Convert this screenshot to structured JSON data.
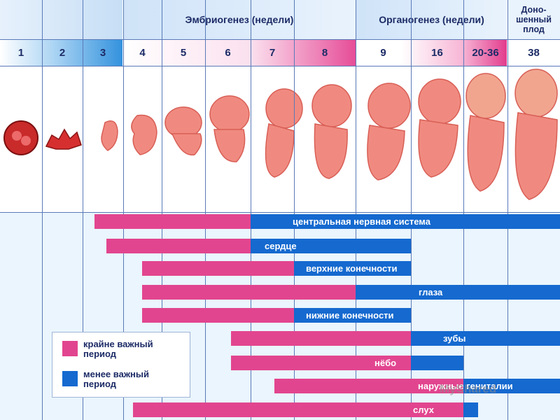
{
  "header": {
    "embryogenesis": "Эмбриогенез (недели)",
    "organogenesis": "Органогенез (недели)",
    "fullterm_line1": "Доно-",
    "fullterm_line2": "шенный",
    "fullterm_line3": "плод"
  },
  "weeks": [
    "1",
    "2",
    "3",
    "4",
    "5",
    "6",
    "7",
    "8",
    "9",
    "16",
    "20-36",
    "38"
  ],
  "legend": {
    "critical_line1": "крайне важный",
    "critical_line2": "период",
    "less_line1": "менее важный",
    "less_line2": "период"
  },
  "colors": {
    "critical": "#e2458f",
    "less_important": "#1569cf",
    "header_text": "#1c2b66",
    "fetus": "#f08a80"
  },
  "watermark": "MyShared",
  "chart_data": {
    "type": "gantt",
    "categories": [
      "1",
      "2",
      "3",
      "4",
      "5",
      "6",
      "7",
      "8",
      "9",
      "16",
      "20-36",
      "38"
    ],
    "series": [
      {
        "name": "крайне важный период",
        "color": "#e2458f"
      },
      {
        "name": "менее важный период",
        "color": "#1569cf"
      }
    ],
    "rows": [
      {
        "label": "центральная нервная система",
        "critical": [
          3,
          6
        ],
        "less": [
          6,
          38
        ]
      },
      {
        "label": "сердце",
        "critical": [
          3,
          6
        ],
        "less": [
          6,
          9
        ]
      },
      {
        "label": "верхние конечности",
        "critical": [
          4,
          7
        ],
        "less": [
          7,
          9
        ]
      },
      {
        "label": "глаза",
        "critical": [
          4,
          8
        ],
        "less": [
          8,
          38
        ]
      },
      {
        "label": "нижние конечности",
        "critical": [
          4,
          7
        ],
        "less": [
          7,
          9
        ]
      },
      {
        "label": "зубы",
        "critical": [
          6,
          9
        ],
        "less": [
          9,
          38
        ]
      },
      {
        "label": "нёбо",
        "critical": [
          6,
          9
        ],
        "less": [
          9,
          16
        ]
      },
      {
        "label": "наружные гениталии",
        "critical": [
          7,
          16
        ],
        "less": [
          16,
          38
        ]
      },
      {
        "label": "слух",
        "critical": [
          3,
          16
        ],
        "less": [
          16,
          20
        ]
      }
    ]
  }
}
